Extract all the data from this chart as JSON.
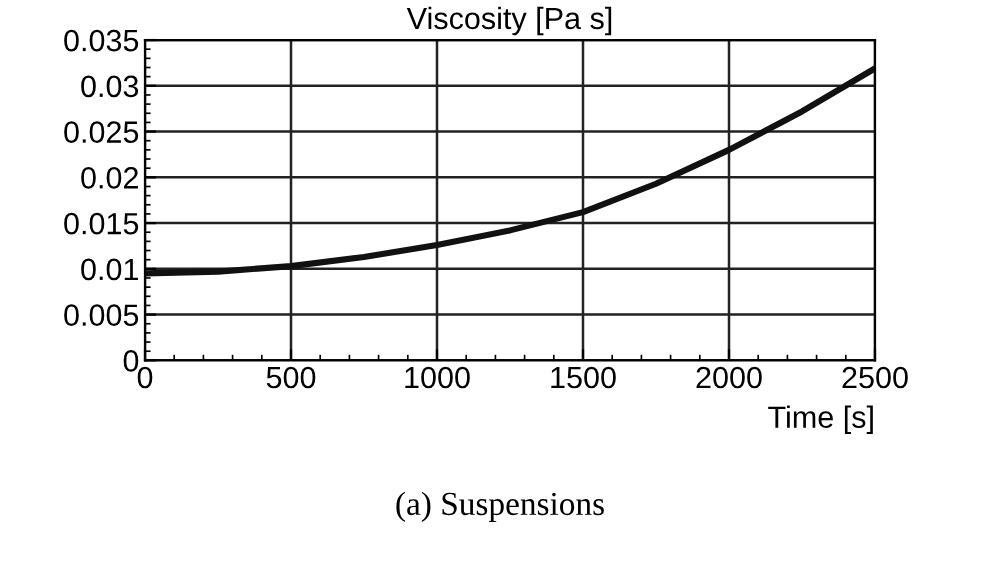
{
  "chart_data": {
    "type": "line",
    "title": "Viscosity [Pa s]",
    "xlabel": "Time [s]",
    "annotations": [
      "(a) Suspensions"
    ],
    "x": [
      0,
      250,
      500,
      750,
      1000,
      1250,
      1500,
      1750,
      2000,
      2250,
      2500
    ],
    "series": [
      {
        "color": "#111111",
        "values": [
          0.0095,
          0.0097,
          0.0103,
          0.0113,
          0.0126,
          0.0142,
          0.0162,
          0.0193,
          0.023,
          0.0272,
          0.0319
        ]
      }
    ],
    "xlim": [
      0,
      2500
    ],
    "xticks": [
      0,
      500,
      1000,
      1500,
      2000,
      2500
    ],
    "ylim": [
      0,
      0.035
    ],
    "yticks": [
      0,
      0.005,
      0.01,
      0.015,
      0.02,
      0.025,
      0.03,
      0.035
    ],
    "grid": true,
    "marker": "none",
    "line_style": "solid"
  }
}
